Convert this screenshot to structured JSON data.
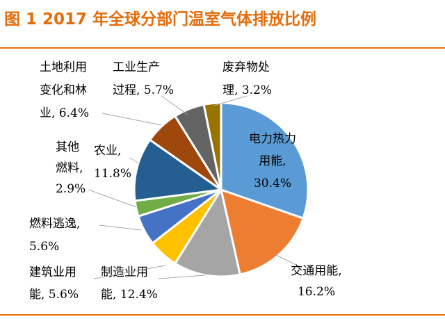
{
  "title": "图 1 2017 年全球分部门温室气体排放比例",
  "chart_data": {
    "type": "pie",
    "title": "图 1 2017 年全球分部门温室气体排放比例",
    "start_angle_deg": 0,
    "direction": "clockwise",
    "slices": [
      {
        "label_lines": [
          "电力热力",
          "用能,",
          "30.4%"
        ],
        "category": "电力热力用能",
        "value": 30.4,
        "color": "#5B9BD5"
      },
      {
        "label_lines": [
          "交通用能,",
          "16.2%"
        ],
        "category": "交通用能",
        "value": 16.2,
        "color": "#ED7D31"
      },
      {
        "label_lines": [
          "制造业用",
          "能, 12.4%"
        ],
        "category": "制造业用能",
        "value": 12.4,
        "color": "#A5A5A5"
      },
      {
        "label_lines": [
          "建筑业用",
          "能, 5.6%"
        ],
        "category": "建筑业用能",
        "value": 5.6,
        "color": "#FFC000"
      },
      {
        "label_lines": [
          "燃料逃逸,",
          "5.6%"
        ],
        "category": "燃料逃逸",
        "value": 5.6,
        "color": "#4472C4"
      },
      {
        "label_lines": [
          "其他",
          "燃料,",
          "2.9%"
        ],
        "category": "其他燃料",
        "value": 2.9,
        "color": "#70AD47"
      },
      {
        "label_lines": [
          "农业,",
          "11.8%"
        ],
        "category": "农业",
        "value": 11.8,
        "color": "#255E91"
      },
      {
        "label_lines": [
          "土地利用",
          "变化和林",
          "业, 6.4%"
        ],
        "category": "土地利用变化和林业",
        "value": 6.4,
        "color": "#9E480E"
      },
      {
        "label_lines": [
          "工业生产",
          "过程, 5.7%"
        ],
        "category": "工业生产过程",
        "value": 5.7,
        "color": "#636363"
      },
      {
        "label_lines": [
          "废弃物处",
          "理, 3.2%"
        ],
        "category": "废弃物处理",
        "value": 3.2,
        "color": "#997300"
      }
    ]
  }
}
